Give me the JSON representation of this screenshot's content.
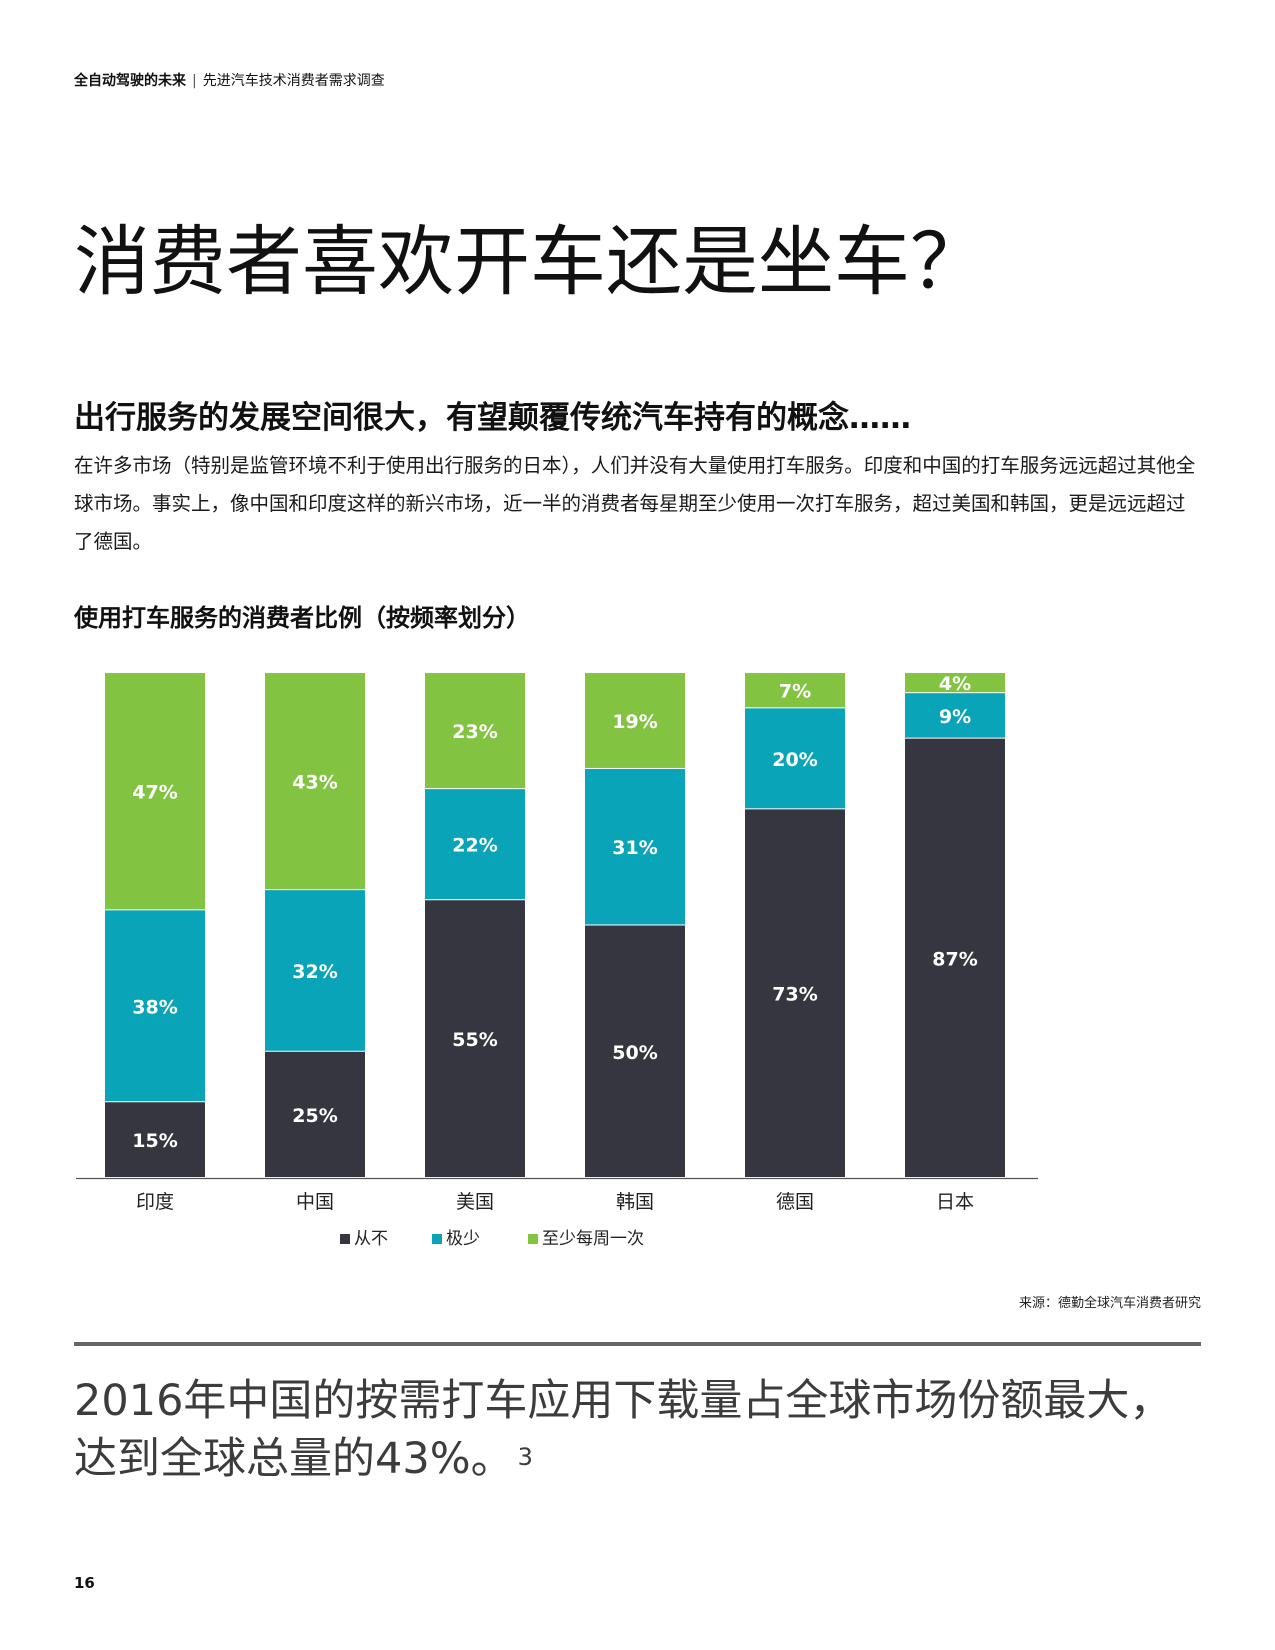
{
  "header": {
    "title": "全自动驾驶的未来",
    "separator": "|",
    "subtitle": "先进汽车技术消费者需求调查"
  },
  "main_title": "消费者喜欢开车还是坐车？",
  "section_subtitle": "出行服务的发展空间很大，有望颠覆传统汽车持有的概念……",
  "body_text": "在许多市场（特别是监管环境不利于使用出行服务的日本），人们并没有大量使用打车服务。印度和中国的打车服务远远超过其他全球市场。事实上，像中国和印度这样的新兴市场，近一半的消费者每星期至少使用一次打车服务，超过美国和韩国，更是远远超过了德国。",
  "chart_title": "使用打车服务的消费者比例（按频率划分）",
  "colors": {
    "never": "#353640",
    "rarely": "#0aa4b8",
    "weekly": "#82c341"
  },
  "chart_data": {
    "type": "bar",
    "stacked": true,
    "categories": [
      "印度",
      "中国",
      "美国",
      "韩国",
      "德国",
      "日本"
    ],
    "series": [
      {
        "name": "从不",
        "values": [
          15,
          25,
          55,
          50,
          73,
          87
        ],
        "labels": [
          "15%",
          "25%",
          "55%",
          "50%",
          "73%",
          "87%"
        ]
      },
      {
        "name": "极少",
        "values": [
          38,
          32,
          22,
          31,
          20,
          9
        ],
        "labels": [
          "38%",
          "32%",
          "22%",
          "31%",
          "20%",
          "9%"
        ]
      },
      {
        "name": "至少每周一次",
        "values": [
          47,
          43,
          23,
          19,
          7,
          4
        ],
        "labels": [
          "47%",
          "43%",
          "23%",
          "19%",
          "7%",
          "4%"
        ]
      }
    ],
    "ylim": [
      0,
      100
    ],
    "grid": false,
    "legend_position": "bottom"
  },
  "source": "来源：德勤全球汽车消费者研究",
  "callout": {
    "text": "2016年中国的按需打车应用下载量占全球市场份额最大，达到全球总量的43%。",
    "footnote": "3"
  },
  "page_number": "16"
}
